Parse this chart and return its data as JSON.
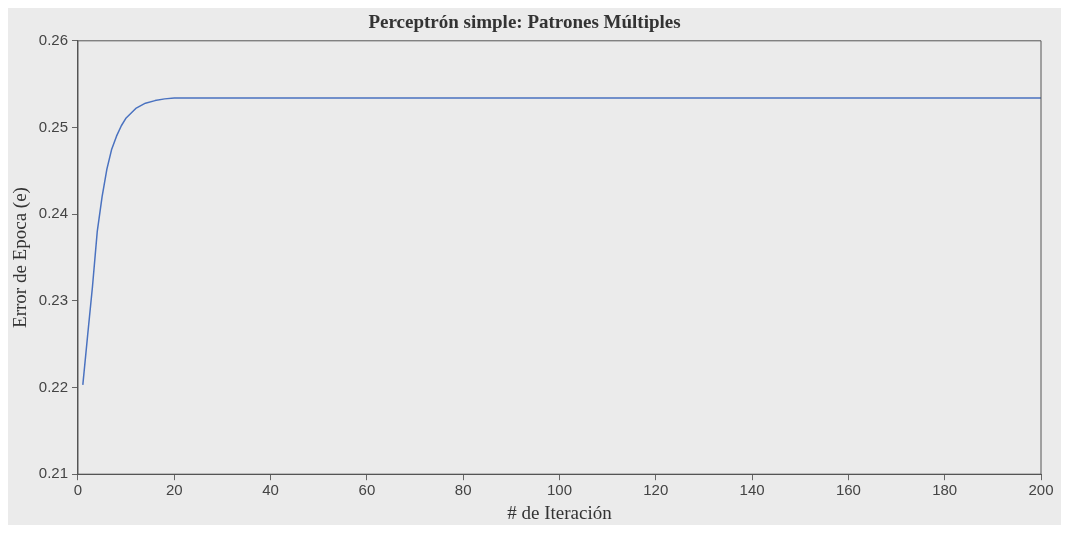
{
  "chart_data": {
    "type": "line",
    "title": "Perceptrón simple: Patrones Múltiples",
    "xlabel": "# de Iteración",
    "ylabel": "Error de Epoca (e)",
    "x": [
      1,
      2,
      3,
      4,
      5,
      6,
      7,
      8,
      9,
      10,
      12,
      14,
      16,
      18,
      20,
      50,
      100,
      150,
      200
    ],
    "series": [
      {
        "color": "#4a72c0",
        "values": [
          0.2203,
          0.226,
          0.2316,
          0.238,
          0.242,
          0.2452,
          0.2475,
          0.249,
          0.2502,
          0.2511,
          0.2522,
          0.2528,
          0.2531,
          0.2533,
          0.2534,
          0.2534,
          0.2534,
          0.2534,
          0.2534
        ]
      }
    ],
    "xlim": [
      0,
      200
    ],
    "xticks": [
      0,
      20,
      40,
      60,
      80,
      100,
      120,
      140,
      160,
      180,
      200
    ],
    "ylim": [
      0.21,
      0.26
    ],
    "yticks": [
      0.21,
      0.22,
      0.23,
      0.24,
      0.25,
      0.26
    ],
    "grid": false,
    "legend": false,
    "marker": "none",
    "line_style": "solid"
  }
}
